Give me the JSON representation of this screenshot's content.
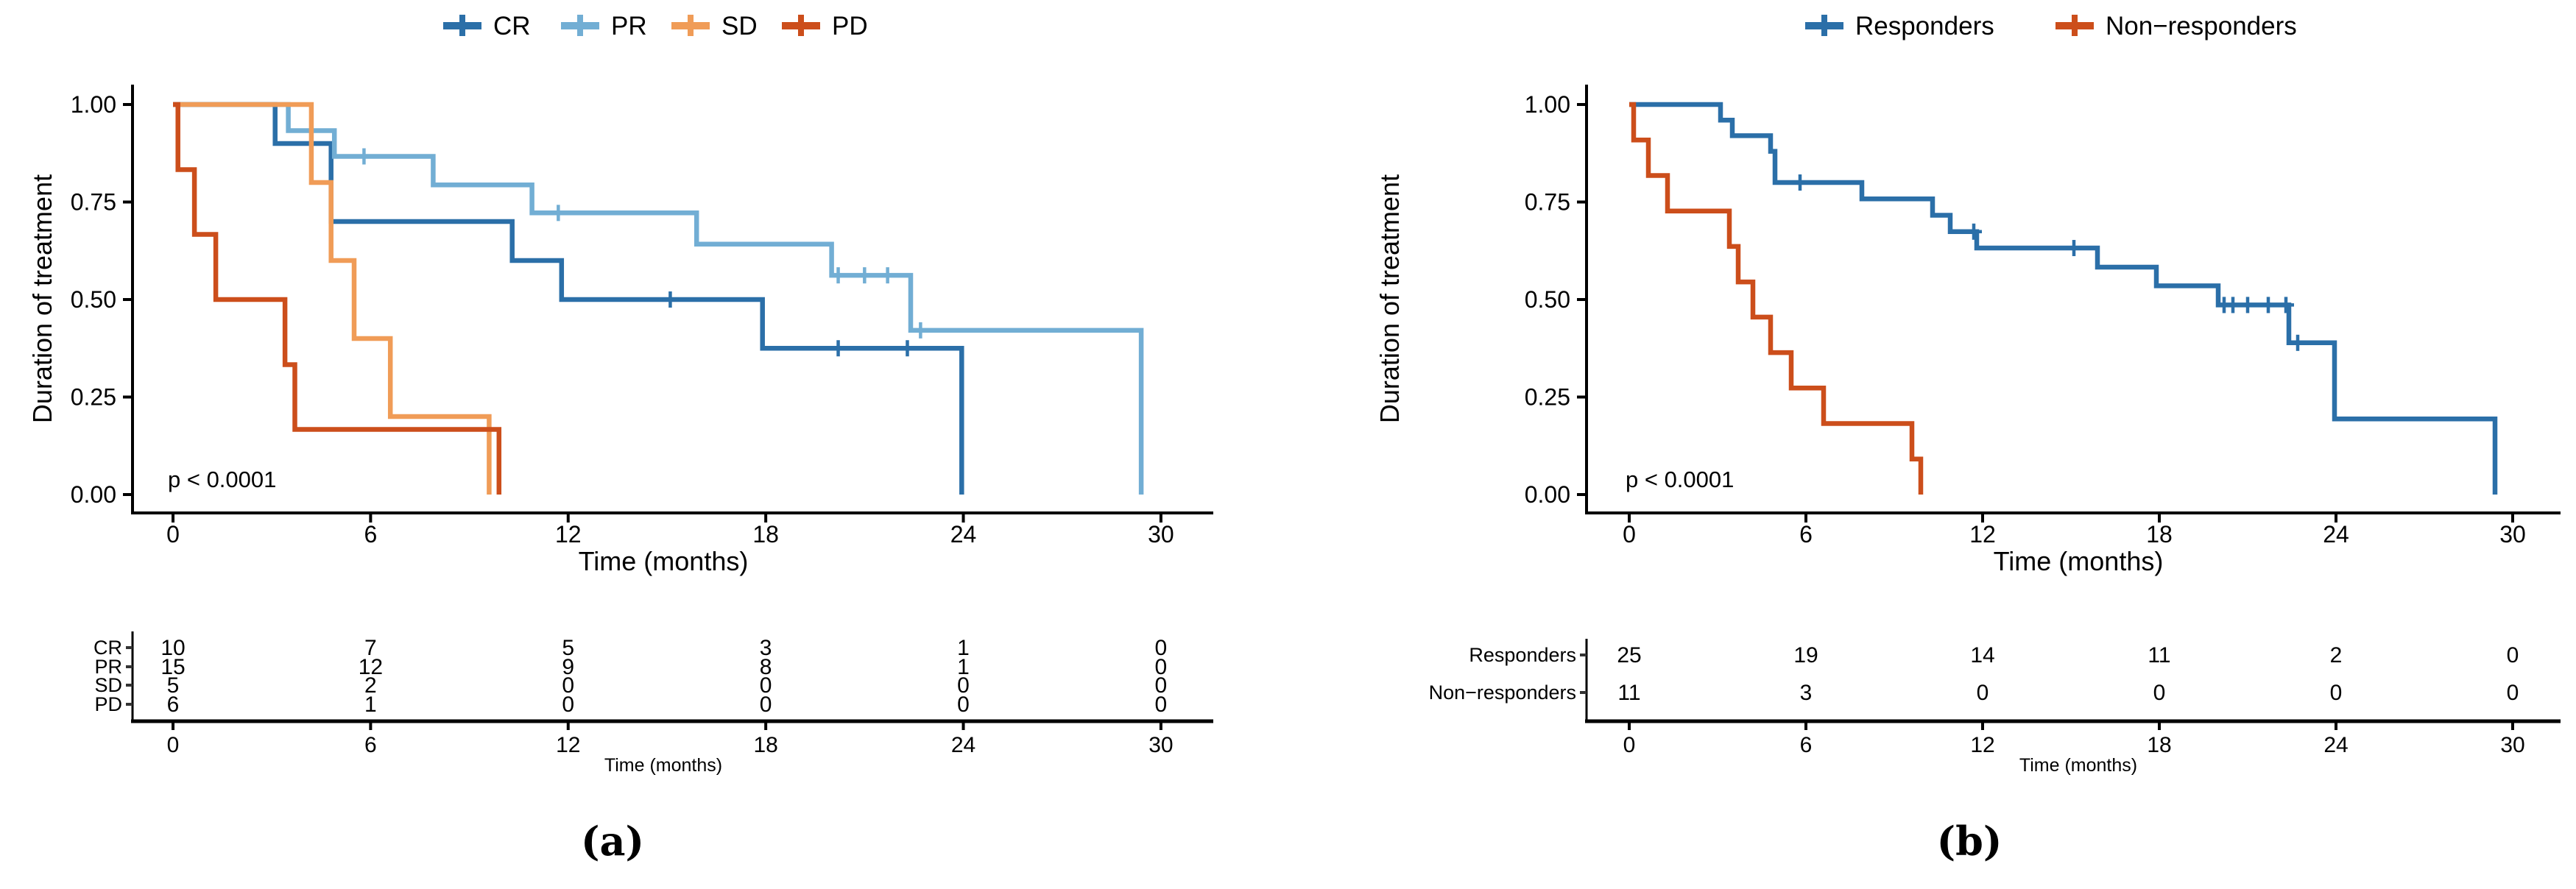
{
  "chart_data": [
    {
      "panel": "a",
      "type": "line",
      "subtype": "kaplan-meier-step",
      "panel_label": "(a)",
      "title": "",
      "xlabel": "Time (months)",
      "ylabel": "Duration of treatment",
      "pvalue": "p < 0.0001",
      "xlim": [
        0,
        31
      ],
      "ylim": [
        0,
        1
      ],
      "x_ticks": [
        "0",
        "6",
        "12",
        "18",
        "24",
        "30"
      ],
      "x_tick_values": [
        0,
        6,
        12,
        18,
        24,
        30
      ],
      "y_ticks": [
        "0.00",
        "0.25",
        "0.50",
        "0.75",
        "1.00"
      ],
      "y_tick_values": [
        0,
        0.25,
        0.5,
        0.75,
        1
      ],
      "legend_position": "top",
      "grid": false,
      "series": [
        {
          "name": "CR",
          "color": "#2b6fa8",
          "points": [
            [
              3.1,
              0.9
            ],
            [
              4.8,
              0.7
            ],
            [
              10.3,
              0.6
            ],
            [
              11.8,
              0.5
            ],
            [
              17.9,
              0.375
            ],
            [
              23.95,
              0
            ]
          ],
          "censors": [
            [
              15.1,
              0.5
            ],
            [
              20.2,
              0.375
            ],
            [
              22.3,
              0.375
            ]
          ]
        },
        {
          "name": "PR",
          "color": "#72aed4",
          "points": [
            [
              3.5,
              0.933
            ],
            [
              4.9,
              0.867
            ],
            [
              7.9,
              0.794
            ],
            [
              10.9,
              0.722
            ],
            [
              15.9,
              0.642
            ],
            [
              20.0,
              0.562
            ],
            [
              22.4,
              0.421
            ],
            [
              29.4,
              0
            ]
          ],
          "censors": [
            [
              5.8,
              0.867
            ],
            [
              11.7,
              0.722
            ],
            [
              20.2,
              0.562
            ],
            [
              21.0,
              0.562
            ],
            [
              21.7,
              0.562
            ],
            [
              22.7,
              0.421
            ]
          ]
        },
        {
          "name": "SD",
          "color": "#f09c57",
          "points": [
            [
              4.2,
              0.8
            ],
            [
              4.8,
              0.6
            ],
            [
              5.5,
              0.4
            ],
            [
              6.6,
              0.2
            ],
            [
              9.6,
              0
            ]
          ],
          "censors": []
        },
        {
          "name": "PD",
          "color": "#cc4e1b",
          "points": [
            [
              0.15,
              0.833
            ],
            [
              0.65,
              0.667
            ],
            [
              1.3,
              0.5
            ],
            [
              3.4,
              0.333
            ],
            [
              3.7,
              0.167
            ],
            [
              9.9,
              0
            ]
          ],
          "censors": []
        }
      ],
      "risk_table": {
        "xlabel": "Time (months)",
        "times": [
          0,
          6,
          12,
          18,
          24,
          30
        ],
        "x_ticks": [
          "0",
          "6",
          "12",
          "18",
          "24",
          "30"
        ],
        "rows": [
          {
            "label": "CR",
            "color": "#2b6fa8",
            "counts": [
              "10",
              "7",
              "5",
              "3",
              "1",
              "0"
            ]
          },
          {
            "label": "PR",
            "color": "#72aed4",
            "counts": [
              "15",
              "12",
              "9",
              "8",
              "1",
              "0"
            ]
          },
          {
            "label": "SD",
            "color": "#f09c57",
            "counts": [
              "5",
              "2",
              "0",
              "0",
              "0",
              "0"
            ]
          },
          {
            "label": "PD",
            "color": "#cc4e1b",
            "counts": [
              "6",
              "1",
              "0",
              "0",
              "0",
              "0"
            ]
          }
        ]
      }
    },
    {
      "panel": "b",
      "type": "line",
      "subtype": "kaplan-meier-step",
      "panel_label": "(b)",
      "title": "",
      "xlabel": "Time (months)",
      "ylabel": "Duration of treatment",
      "pvalue": "p < 0.0001",
      "xlim": [
        0,
        31
      ],
      "ylim": [
        0,
        1
      ],
      "x_ticks": [
        "0",
        "6",
        "12",
        "18",
        "24",
        "30"
      ],
      "x_tick_values": [
        0,
        6,
        12,
        18,
        24,
        30
      ],
      "y_ticks": [
        "0.00",
        "0.25",
        "0.50",
        "0.75",
        "1.00"
      ],
      "y_tick_values": [
        0,
        0.25,
        0.5,
        0.75,
        1
      ],
      "legend_position": "top",
      "grid": false,
      "series": [
        {
          "name": "Responders",
          "color": "#2b6fa8",
          "points": [
            [
              3.1,
              0.96
            ],
            [
              3.5,
              0.92
            ],
            [
              4.8,
              0.88
            ],
            [
              4.95,
              0.8
            ],
            [
              7.9,
              0.758
            ],
            [
              10.3,
              0.716
            ],
            [
              10.9,
              0.674
            ],
            [
              11.8,
              0.632
            ],
            [
              15.9,
              0.583
            ],
            [
              17.9,
              0.535
            ],
            [
              20.0,
              0.486
            ],
            [
              22.4,
              0.389
            ],
            [
              23.95,
              0.194
            ],
            [
              29.4,
              0
            ]
          ],
          "censors": [
            [
              5.8,
              0.8
            ],
            [
              11.7,
              0.674
            ],
            [
              15.1,
              0.632
            ],
            [
              20.2,
              0.486
            ],
            [
              20.5,
              0.486
            ],
            [
              21.0,
              0.486
            ],
            [
              21.7,
              0.486
            ],
            [
              22.3,
              0.486
            ],
            [
              22.7,
              0.389
            ]
          ]
        },
        {
          "name": "Non−responders",
          "color": "#cc4e1b",
          "points": [
            [
              0.15,
              0.909
            ],
            [
              0.65,
              0.818
            ],
            [
              1.3,
              0.727
            ],
            [
              3.4,
              0.636
            ],
            [
              3.7,
              0.545
            ],
            [
              4.2,
              0.455
            ],
            [
              4.8,
              0.364
            ],
            [
              5.5,
              0.273
            ],
            [
              6.6,
              0.182
            ],
            [
              9.6,
              0.091
            ],
            [
              9.9,
              0
            ]
          ],
          "censors": []
        }
      ],
      "risk_table": {
        "xlabel": "Time (months)",
        "times": [
          0,
          6,
          12,
          18,
          24,
          30
        ],
        "x_ticks": [
          "0",
          "6",
          "12",
          "18",
          "24",
          "30"
        ],
        "rows": [
          {
            "label": "Responders",
            "color": "#2b6fa8",
            "counts": [
              "25",
              "19",
              "14",
              "11",
              "2",
              "0"
            ]
          },
          {
            "label": "Non−responders",
            "color": "#cc4e1b",
            "counts": [
              "11",
              "3",
              "0",
              "0",
              "0",
              "0"
            ]
          }
        ]
      }
    }
  ]
}
